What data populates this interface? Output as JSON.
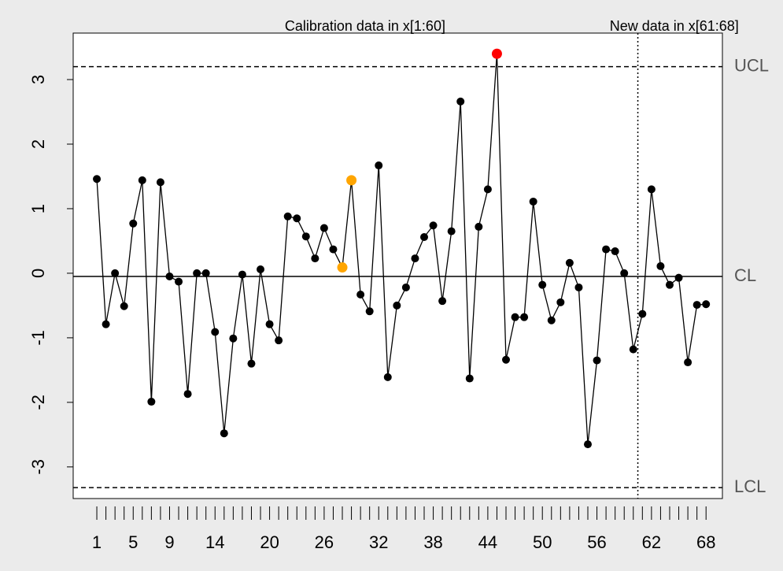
{
  "chart_data": {
    "type": "qcc",
    "series": [
      {
        "name": "Calibration data in x[1:60]",
        "color": "#000000",
        "x": [
          1,
          2,
          3,
          4,
          5,
          6,
          7,
          8,
          9,
          10,
          11,
          12,
          13,
          14,
          15,
          16,
          17,
          18,
          19,
          20,
          21,
          22,
          23,
          24,
          25,
          26,
          27,
          28,
          29,
          30,
          31,
          32,
          33,
          34,
          35,
          36,
          37,
          38,
          39,
          40,
          41,
          42,
          43,
          44,
          45,
          46,
          47,
          48,
          49,
          50,
          51,
          52,
          53,
          54,
          55,
          56,
          57,
          58,
          59,
          60
        ],
        "values": [
          1.46,
          -0.79,
          0.0,
          -0.51,
          0.77,
          1.44,
          -1.99,
          1.41,
          -0.05,
          -0.13,
          -1.87,
          0.0,
          0.0,
          -0.91,
          -2.48,
          -1.01,
          -0.02,
          -1.4,
          0.06,
          -0.79,
          -1.04,
          0.88,
          0.85,
          0.57,
          0.23,
          0.7,
          0.37,
          0.09,
          1.44,
          -0.33,
          -0.59,
          1.67,
          -1.61,
          -0.5,
          -0.22,
          0.23,
          0.56,
          0.74,
          -0.43,
          0.65,
          2.66,
          -1.63,
          0.72,
          1.3,
          3.4,
          -1.34,
          -0.68,
          -0.68,
          1.11,
          -0.18,
          -0.73,
          -0.45,
          0.16,
          -0.22,
          -2.65,
          -1.35,
          0.37,
          0.34,
          0.0,
          -1.18
        ]
      },
      {
        "name": "New data in x[61:68]",
        "color": "#000000",
        "x": [
          61,
          62,
          63,
          64,
          65,
          66,
          67,
          68
        ],
        "values": [
          -0.63,
          1.3,
          0.11,
          -0.18,
          -0.07,
          -1.38,
          -0.49,
          -0.48
        ]
      }
    ],
    "violations": {
      "color": "#ffa500",
      "x": [
        28,
        29
      ]
    },
    "beyond_limits": {
      "color": "#ff0000",
      "x": [
        45
      ]
    },
    "limits": [
      {
        "label": "UCL",
        "value": 3.2,
        "style": "dashed"
      },
      {
        "label": "CL",
        "value": -0.05,
        "style": "solid"
      },
      {
        "label": "LCL",
        "value": -3.32,
        "style": "dashed"
      }
    ],
    "xlim": [
      -1.6,
      69.8
    ],
    "ylim": [
      -3.49,
      3.72
    ],
    "xticks": [
      1,
      5,
      9,
      14,
      20,
      26,
      32,
      38,
      44,
      50,
      56,
      62,
      68
    ],
    "yticks": [
      -3,
      -2,
      -1,
      0,
      1,
      2,
      3
    ]
  }
}
